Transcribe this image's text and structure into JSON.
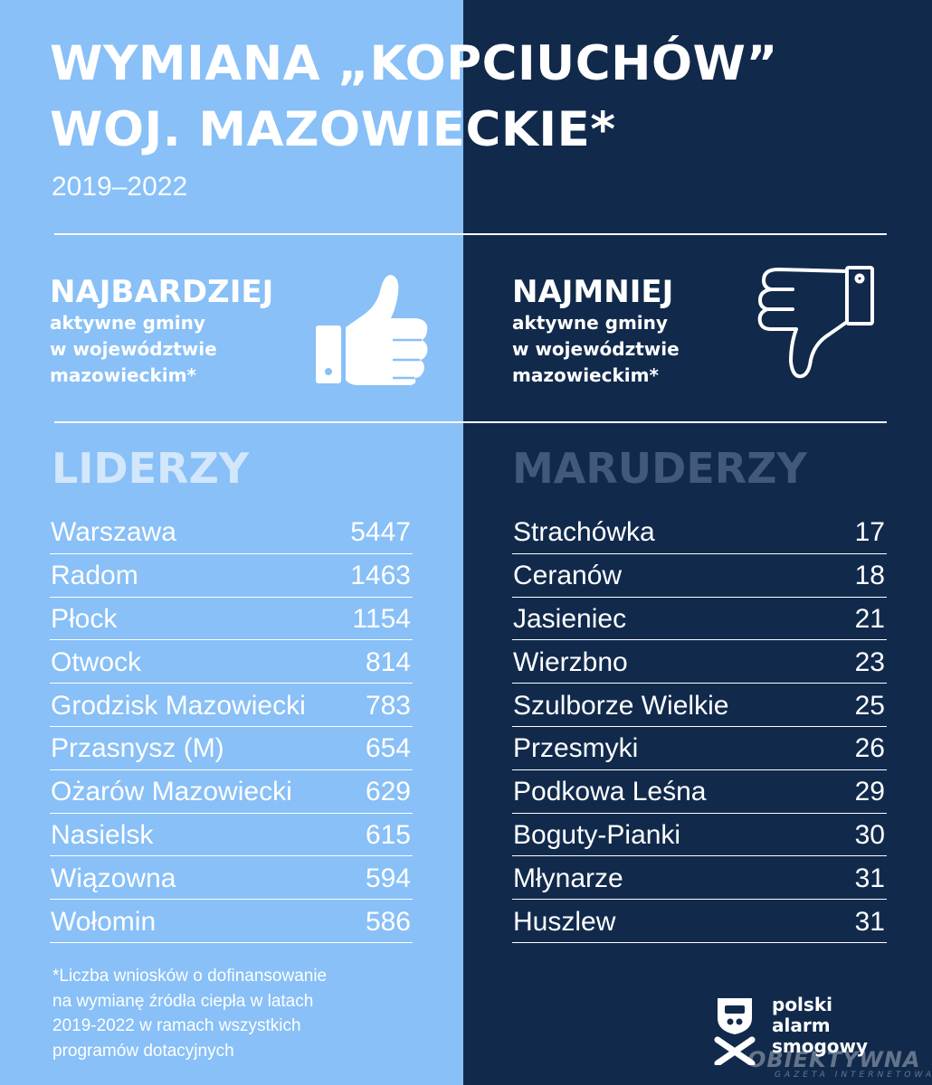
{
  "colors": {
    "left_bg": "#88c0f7",
    "right_bg": "#112a4c",
    "text": "#ffffff",
    "leaders_label": "#d2e7fb",
    "laggards_label": "#42597a"
  },
  "header": {
    "title_line1": "WYMIANA „KOPCIUCHÓW”",
    "title_line2": "WOJ. MAZOWIECKIE*",
    "years": "2019–2022"
  },
  "left_panel": {
    "heading": "NAJBARDZIEJ",
    "sub1": "aktywne gminy",
    "sub2": "w województwie",
    "sub3": "mazowieckim*",
    "icon": "thumbs-up-icon",
    "section_label": "LIDERZY",
    "rows": [
      {
        "name": "Warszawa",
        "value": "5447"
      },
      {
        "name": "Radom",
        "value": "1463"
      },
      {
        "name": "Płock",
        "value": "1154"
      },
      {
        "name": "Otwock",
        "value": "814"
      },
      {
        "name": "Grodzisk Mazowiecki",
        "value": "783"
      },
      {
        "name": "Przasnysz (M)",
        "value": "654"
      },
      {
        "name": "Ożarów Mazowiecki",
        "value": "629"
      },
      {
        "name": "Nasielsk",
        "value": "615"
      },
      {
        "name": "Wiązowna",
        "value": "594"
      },
      {
        "name": "Wołomin",
        "value": "586"
      }
    ]
  },
  "right_panel": {
    "heading": "NAJMNIEJ",
    "sub1": "aktywne gminy",
    "sub2": "w województwie",
    "sub3": "mazowieckim*",
    "icon": "thumbs-down-icon",
    "section_label": "MARUDERZY",
    "rows": [
      {
        "name": "Strachówka",
        "value": "17"
      },
      {
        "name": "Ceranów",
        "value": "18"
      },
      {
        "name": "Jasieniec",
        "value": "21"
      },
      {
        "name": "Wierzbno",
        "value": "23"
      },
      {
        "name": "Szulborze Wielkie",
        "value": "25"
      },
      {
        "name": "Przesmyki",
        "value": "26"
      },
      {
        "name": "Podkowa Leśna",
        "value": "29"
      },
      {
        "name": "Boguty-Pianki",
        "value": "30"
      },
      {
        "name": "Młynarze",
        "value": "31"
      },
      {
        "name": "Huszlew",
        "value": "31"
      }
    ]
  },
  "footnote": {
    "line1": "*Liczba wniosków o dofinansowanie",
    "line2": "na wymianę źródła ciepła w latach",
    "line3": "2019-2022 w ramach wszystkich",
    "line4": "programów dotacyjnych"
  },
  "logo": {
    "line1": "polski",
    "line2": "alarm",
    "line3": "smogowy",
    "icon": "polski-alarm-smogowy-logo-icon"
  },
  "watermark": {
    "text": "OBIEKTYWNA",
    "subtext": "GAZETA INTERNETOWA"
  }
}
